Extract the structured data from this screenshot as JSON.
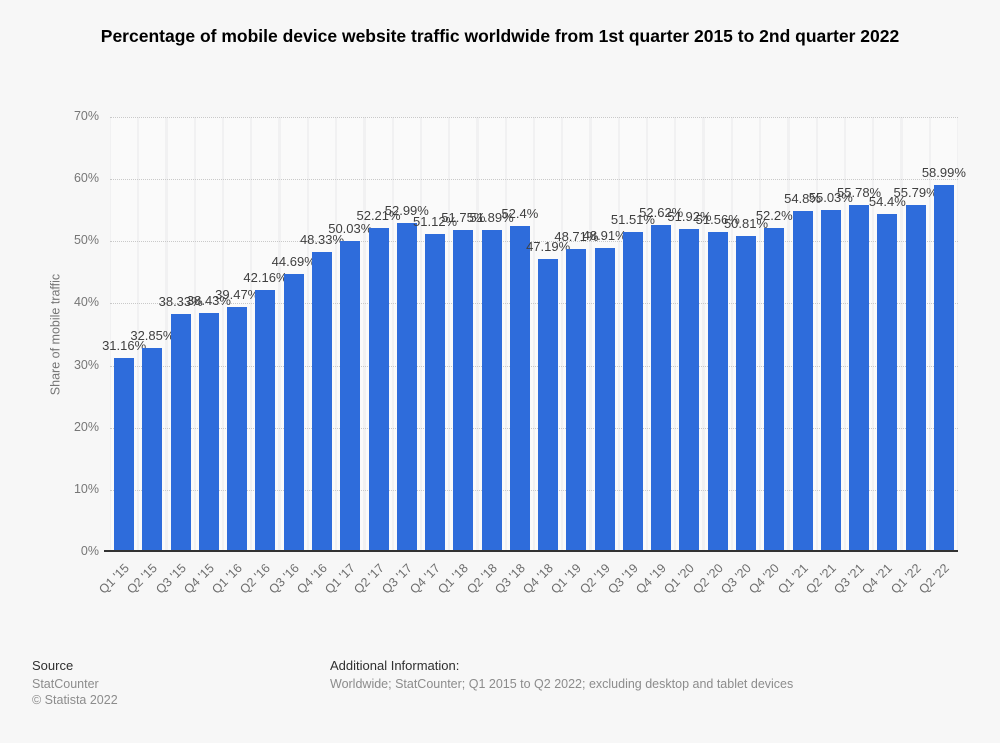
{
  "title": "Percentage of mobile device website traffic worldwide from 1st quarter 2015 to 2nd quarter 2022",
  "chart_data": {
    "type": "bar",
    "title": "Percentage of mobile device website traffic worldwide from 1st quarter 2015 to 2nd quarter 2022",
    "xlabel": "",
    "ylabel": "Share of mobile traffic",
    "ylim": [
      0,
      70
    ],
    "yticks": [
      "0%",
      "10%",
      "20%",
      "30%",
      "40%",
      "50%",
      "60%",
      "70%"
    ],
    "grid": "dotted horizontal gridlines",
    "legend": "none",
    "bar_color": "#2e6cdb",
    "categories": [
      "Q1 '15",
      "Q2 '15",
      "Q3 '15",
      "Q4 '15",
      "Q1 '16",
      "Q2 '16",
      "Q3 '16",
      "Q4 '16",
      "Q1 '17",
      "Q2 '17",
      "Q3 '17",
      "Q4 '17",
      "Q1 '18",
      "Q2 '18",
      "Q3 '18",
      "Q4 '18",
      "Q1 '19",
      "Q2 '19",
      "Q3 '19",
      "Q4 '19",
      "Q1 '20",
      "Q2 '20",
      "Q3 '20",
      "Q4 '20",
      "Q1 '21",
      "Q2 '21",
      "Q3 '21",
      "Q4 '21",
      "Q1 '22",
      "Q2 '22"
    ],
    "values": [
      31.16,
      32.85,
      38.33,
      38.43,
      39.47,
      42.16,
      44.69,
      48.33,
      50.03,
      52.21,
      52.99,
      51.12,
      51.75,
      51.89,
      52.4,
      47.19,
      48.71,
      48.91,
      51.51,
      52.62,
      51.92,
      51.56,
      50.81,
      52.2,
      54.8,
      55.03,
      55.78,
      54.4,
      55.79,
      58.99
    ],
    "value_labels": [
      "31.16%",
      "32.85%",
      "38.33%",
      "38.43%",
      "39.47%",
      "42.16%",
      "44.69%",
      "48.33%",
      "50.03%",
      "52.21%",
      "52.99%",
      "51.12%",
      "51.75%",
      "51.89%",
      "52.4%",
      "47.19%",
      "48.71%",
      "48.91%",
      "51.51%",
      "52.62%",
      "51.92%",
      "51.56%",
      "50.81%",
      "52.2%",
      "54.8%",
      "55.03%",
      "55.78%",
      "54.4%",
      "55.79%",
      "58.99%"
    ]
  },
  "footer": {
    "source_label": "Source",
    "source_name": "StatCounter",
    "copyright": "© Statista 2022",
    "additional_label": "Additional Information:",
    "additional_text": "Worldwide; StatCounter; Q1 2015 to Q2 2022; excluding desktop and tablet devices"
  }
}
